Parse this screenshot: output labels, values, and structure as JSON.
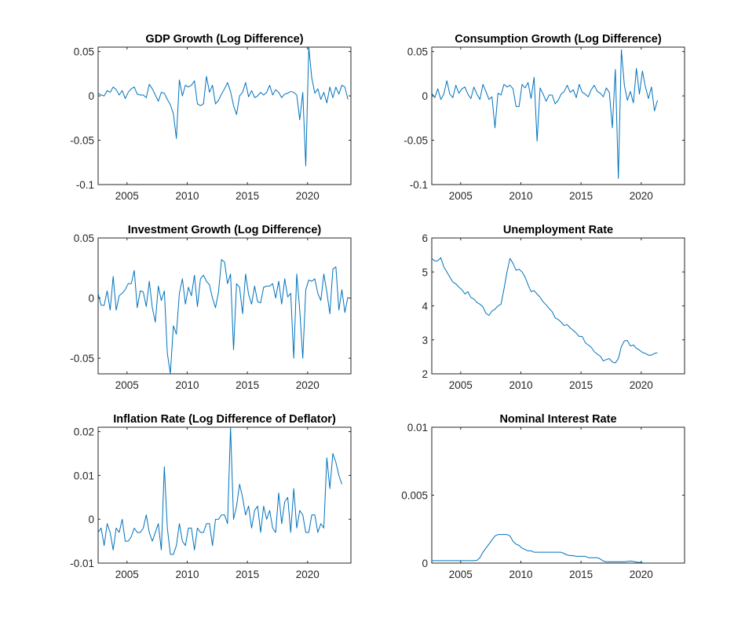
{
  "colors": {
    "line": "#0072bd",
    "axes": "#262626",
    "background": "#ffffff"
  },
  "chart_data": [
    {
      "type": "line",
      "title": "GDP Growth (Log Difference)",
      "xlabel": "",
      "ylabel": "",
      "xlim": [
        2002.6,
        2023.6
      ],
      "ylim": [
        -0.1,
        0.055
      ],
      "xticks": [
        2005,
        2010,
        2015,
        2020
      ],
      "xtick_labels": [
        "2005",
        "2010",
        "2015",
        "2020"
      ],
      "yticks": [
        -0.1,
        -0.05,
        0,
        0.05
      ],
      "ytick_labels": [
        "-0.1",
        "-0.05",
        "0",
        "0.05"
      ],
      "grid": false,
      "x_start": 2002.6,
      "x_step": 0.25,
      "series": [
        {
          "values": [
            0.003,
            0.001,
            0.0,
            0.006,
            0.004,
            0.01,
            0.007,
            0.001,
            0.006,
            -0.003,
            0.004,
            0.008,
            0.01,
            0.002,
            0.001,
            0.001,
            -0.002,
            0.013,
            0.008,
            0.001,
            -0.006,
            0.004,
            0.003,
            -0.004,
            -0.01,
            -0.02,
            -0.048,
            0.018,
            0.0,
            0.012,
            0.01,
            0.012,
            0.017,
            -0.009,
            -0.011,
            -0.009,
            0.022,
            0.004,
            0.012,
            -0.009,
            -0.005,
            0.002,
            0.008,
            0.015,
            0.005,
            -0.011,
            -0.021,
            0.0,
            0.004,
            0.015,
            -0.001,
            0.006,
            -0.002,
            0.0,
            0.004,
            0.001,
            0.004,
            0.012,
            0.001,
            0.007,
            0.004,
            -0.002,
            0.002,
            0.003,
            0.005,
            0.004,
            0.001,
            -0.027,
            0.004,
            -0.079,
            0.055,
            0.02,
            0.003,
            0.008,
            -0.004,
            0.004,
            -0.008,
            0.01,
            -0.002,
            0.01,
            0.002,
            0.012,
            0.01,
            -0.004
          ]
        }
      ]
    },
    {
      "type": "line",
      "title": "Consumption Growth (Log Difference)",
      "xlabel": "",
      "ylabel": "",
      "xlim": [
        2002.6,
        2023.6
      ],
      "ylim": [
        -0.1,
        0.055
      ],
      "xticks": [
        2005,
        2010,
        2015,
        2020
      ],
      "xtick_labels": [
        "2005",
        "2010",
        "2015",
        "2020"
      ],
      "yticks": [
        -0.1,
        -0.05,
        0,
        0.05
      ],
      "ytick_labels": [
        "-0.1",
        "-0.05",
        "0",
        "0.05"
      ],
      "grid": false,
      "x_start": 2002.6,
      "x_step": 0.25,
      "series": [
        {
          "values": [
            0.003,
            -0.002,
            0.008,
            -0.004,
            0.002,
            0.017,
            0.002,
            -0.002,
            0.012,
            0.003,
            0.008,
            0.01,
            0.002,
            -0.003,
            0.01,
            0.002,
            -0.004,
            0.013,
            0.005,
            -0.004,
            -0.001,
            -0.036,
            0.003,
            0.001,
            0.013,
            0.01,
            0.012,
            0.008,
            -0.012,
            -0.012,
            0.013,
            0.009,
            0.015,
            -0.003,
            0.021,
            -0.051,
            0.009,
            0.002,
            -0.006,
            0.001,
            0.001,
            -0.009,
            -0.005,
            0.002,
            0.005,
            0.012,
            0.004,
            0.007,
            -0.002,
            0.013,
            0.004,
            0.002,
            -0.001,
            0.007,
            0.012,
            0.005,
            0.003,
            -0.001,
            0.009,
            0.004,
            -0.036,
            0.03,
            -0.093,
            0.052,
            0.012,
            -0.005,
            0.005,
            -0.008,
            0.031,
            0.002,
            0.028,
            0.01,
            -0.003,
            0.01,
            -0.017,
            -0.005
          ]
        }
      ]
    },
    {
      "type": "line",
      "title": "Investment Growth (Log Difference)",
      "xlabel": "",
      "ylabel": "",
      "xlim": [
        2002.6,
        2023.6
      ],
      "ylim": [
        -0.063,
        0.05
      ],
      "xticks": [
        2005,
        2010,
        2015,
        2020
      ],
      "xtick_labels": [
        "2005",
        "2010",
        "2015",
        "2020"
      ],
      "yticks": [
        -0.05,
        0,
        0.05
      ],
      "ytick_labels": [
        "-0.05",
        "0",
        "0.05"
      ],
      "grid": false,
      "x_start": 2002.6,
      "x_step": 0.25,
      "series": [
        {
          "values": [
            0.004,
            -0.006,
            -0.006,
            0.006,
            -0.01,
            0.018,
            -0.01,
            0.002,
            0.004,
            0.007,
            0.012,
            0.012,
            0.023,
            -0.008,
            0.006,
            0.005,
            -0.007,
            0.014,
            -0.008,
            -0.02,
            0.01,
            -0.002,
            0.006,
            -0.046,
            -0.063,
            -0.023,
            -0.03,
            0.004,
            0.016,
            -0.005,
            0.009,
            0.002,
            0.019,
            -0.007,
            0.016,
            0.019,
            0.014,
            0.011,
            0.0,
            -0.008,
            0.005,
            0.032,
            0.03,
            0.012,
            0.02,
            -0.043,
            0.012,
            0.009,
            -0.013,
            0.02,
            0.003,
            -0.005,
            0.01,
            -0.003,
            -0.004,
            0.009,
            0.01,
            0.01,
            0.012,
            0.0,
            0.014,
            -0.005,
            0.016,
            0.001,
            0.004,
            -0.05,
            0.02,
            -0.01,
            -0.05,
            0.007,
            0.015,
            0.014,
            0.016,
            0.004,
            -0.002,
            0.02,
            0.005,
            -0.013,
            0.024,
            0.026,
            -0.01,
            0.007,
            -0.012,
            0.001
          ]
        }
      ]
    },
    {
      "type": "line",
      "title": "Unemployment Rate",
      "xlabel": "",
      "ylabel": "",
      "xlim": [
        2002.6,
        2023.6
      ],
      "ylim": [
        2,
        6
      ],
      "xticks": [
        2005,
        2010,
        2015,
        2020
      ],
      "xtick_labels": [
        "2005",
        "2010",
        "2015",
        "2020"
      ],
      "yticks": [
        2,
        3,
        4,
        5,
        6
      ],
      "ytick_labels": [
        "2",
        "3",
        "4",
        "5",
        "6"
      ],
      "grid": false,
      "x_start": 2002.6,
      "x_step": 0.25,
      "series": [
        {
          "values": [
            5.4,
            5.32,
            5.33,
            5.42,
            5.15,
            5.0,
            4.85,
            4.7,
            4.65,
            4.55,
            4.48,
            4.35,
            4.42,
            4.25,
            4.2,
            4.1,
            4.05,
            3.97,
            3.78,
            3.72,
            3.85,
            3.9,
            4.0,
            4.05,
            4.5,
            5.0,
            5.4,
            5.25,
            5.05,
            5.08,
            5.0,
            4.85,
            4.62,
            4.42,
            4.45,
            4.35,
            4.25,
            4.12,
            4.03,
            3.92,
            3.83,
            3.65,
            3.6,
            3.52,
            3.42,
            3.45,
            3.35,
            3.28,
            3.2,
            3.1,
            3.1,
            2.92,
            2.85,
            2.78,
            2.65,
            2.58,
            2.52,
            2.38,
            2.42,
            2.45,
            2.35,
            2.32,
            2.45,
            2.8,
            2.97,
            2.98,
            2.82,
            2.85,
            2.75,
            2.7,
            2.63,
            2.6,
            2.55,
            2.55,
            2.6,
            2.62
          ]
        }
      ]
    },
    {
      "type": "line",
      "title": "Inflation Rate (Log Difference of Deflator)",
      "xlabel": "",
      "ylabel": "",
      "xlim": [
        2002.6,
        2023.6
      ],
      "ylim": [
        -0.01,
        0.021
      ],
      "xticks": [
        2005,
        2010,
        2015,
        2020
      ],
      "xtick_labels": [
        "2005",
        "2010",
        "2015",
        "2020"
      ],
      "yticks": [
        -0.01,
        0,
        0.01,
        0.02
      ],
      "ytick_labels": [
        "-0.01",
        "0",
        "0.01",
        "0.02"
      ],
      "grid": false,
      "x_start": 2002.6,
      "x_step": 0.25,
      "series": [
        {
          "values": [
            -0.003,
            -0.002,
            -0.006,
            -0.001,
            -0.003,
            -0.007,
            -0.002,
            -0.003,
            0.0,
            -0.005,
            -0.005,
            -0.004,
            -0.002,
            -0.003,
            -0.003,
            -0.002,
            0.001,
            -0.003,
            -0.005,
            -0.003,
            -0.001,
            -0.007,
            0.012,
            -0.002,
            -0.008,
            -0.008,
            -0.006,
            -0.001,
            -0.005,
            -0.006,
            -0.002,
            -0.002,
            -0.007,
            -0.002,
            -0.003,
            -0.003,
            -0.001,
            -0.001,
            -0.006,
            0.0,
            0.0,
            0.001,
            0.001,
            -0.001,
            0.021,
            0.0,
            0.003,
            0.008,
            0.005,
            0.001,
            0.003,
            -0.002,
            0.002,
            0.003,
            -0.003,
            0.003,
            0.0,
            0.002,
            -0.002,
            -0.003,
            0.006,
            -0.001,
            0.004,
            0.005,
            -0.003,
            0.007,
            -0.002,
            0.002,
            0.001,
            -0.003,
            -0.003,
            0.001,
            0.001,
            -0.003,
            -0.001,
            -0.002,
            0.014,
            0.007,
            0.015,
            0.013,
            0.01,
            0.008
          ]
        }
      ]
    },
    {
      "type": "line",
      "title": "Nominal Interest Rate",
      "xlabel": "",
      "ylabel": "",
      "xlim": [
        2002.6,
        2023.6
      ],
      "ylim": [
        0,
        0.01
      ],
      "xticks": [
        2005,
        2010,
        2015,
        2020
      ],
      "xtick_labels": [
        "2005",
        "2010",
        "2015",
        "2020"
      ],
      "yticks": [
        0,
        0.005,
        0.01
      ],
      "ytick_labels": [
        "0",
        "0.005",
        "0.01"
      ],
      "grid": false,
      "x_start": 2002.6,
      "x_step": 0.25,
      "series": [
        {
          "values": [
            0.00018,
            0.00018,
            0.00018,
            0.00018,
            0.00018,
            0.00018,
            0.00018,
            0.00018,
            0.00018,
            0.00018,
            0.00018,
            0.00018,
            0.00018,
            0.00018,
            0.00018,
            0.0002,
            0.0004,
            0.0008,
            0.0011,
            0.0014,
            0.0017,
            0.002,
            0.0021,
            0.0021,
            0.0021,
            0.0021,
            0.002,
            0.0016,
            0.0014,
            0.0013,
            0.0011,
            0.001,
            0.0009,
            0.0009,
            0.0008,
            0.0008,
            0.0008,
            0.0008,
            0.0008,
            0.0008,
            0.0008,
            0.0008,
            0.0008,
            0.0008,
            0.0007,
            0.0006,
            0.00055,
            0.00055,
            0.0005,
            0.0005,
            0.0005,
            0.0005,
            0.0004,
            0.0004,
            0.0004,
            0.0004,
            0.0003,
            0.00015,
            0.0001,
            0.0001,
            0.0001,
            0.0001,
            0.0001,
            0.0001,
            0.0001,
            0.00012,
            0.00015,
            0.00012,
            8e-05,
            5e-05,
            2e-05,
            0.0
          ]
        }
      ]
    }
  ]
}
